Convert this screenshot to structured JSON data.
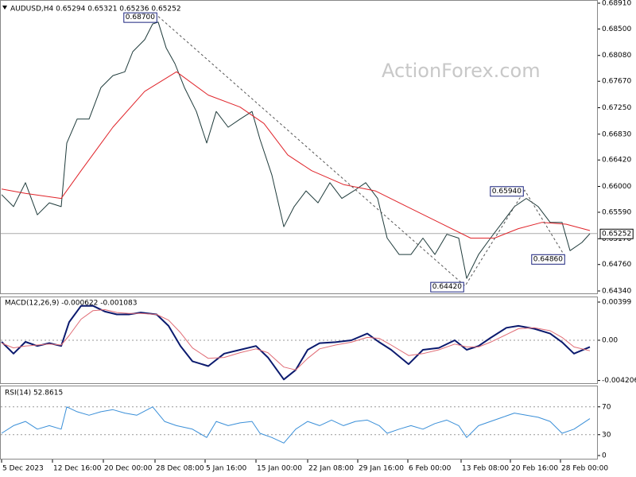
{
  "chart_data": [
    {
      "type": "line",
      "title": "AUDUSD,H4  0.65294 0.65321 0.65236 0.65252",
      "watermark": "ActionForex.com",
      "ylim": [
        0.6434,
        0.6891
      ],
      "yticks": [
        {
          "value": 0.6891,
          "label": "0.68910"
        },
        {
          "value": 0.685,
          "label": "0.68500"
        },
        {
          "value": 0.6808,
          "label": "0.68080"
        },
        {
          "value": 0.6767,
          "label": "0.67670"
        },
        {
          "value": 0.6725,
          "label": "0.67250"
        },
        {
          "value": 0.6683,
          "label": "0.66830"
        },
        {
          "value": 0.6642,
          "label": "0.66420"
        },
        {
          "value": 0.66,
          "label": "0.66000"
        },
        {
          "value": 0.6559,
          "label": "0.65590"
        },
        {
          "value": 0.6517,
          "label": "0.65170"
        },
        {
          "value": 0.6476,
          "label": "0.64760"
        },
        {
          "value": 0.6434,
          "label": "0.64340"
        }
      ],
      "last": {
        "value": 0.65252,
        "label": "0.65252"
      },
      "series": [
        {
          "color": "#1f3b3b",
          "x": [
            0,
            3,
            6,
            9,
            12,
            15,
            16.4,
            19,
            22,
            25,
            28,
            31,
            33,
            36,
            38,
            39.4,
            41.4,
            43.6,
            46,
            49,
            51.6,
            54,
            57,
            60,
            63,
            65,
            68,
            71,
            73.6,
            76.6,
            79.6,
            82.6,
            85.6,
            88.6,
            91.6,
            94.6,
            97,
            100,
            103,
            106,
            109,
            112,
            115,
            117,
            120,
            123,
            126,
            129,
            132,
            135,
            138,
            141,
            143,
            146,
            148
          ],
          "values": [
            0.6587,
            0.6568,
            0.6606,
            0.6555,
            0.6574,
            0.6568,
            0.6669,
            0.6707,
            0.6707,
            0.6757,
            0.6776,
            0.6782,
            0.6814,
            0.6833,
            0.6858,
            0.6861,
            0.682,
            0.6795,
            0.6757,
            0.6719,
            0.6669,
            0.6719,
            0.6694,
            0.6707,
            0.6719,
            0.6675,
            0.6618,
            0.6536,
            0.6568,
            0.6593,
            0.6574,
            0.6606,
            0.6581,
            0.6593,
            0.6606,
            0.6581,
            0.6518,
            0.6492,
            0.6492,
            0.6518,
            0.6492,
            0.6524,
            0.6518,
            0.6454,
            0.6492,
            0.6518,
            0.6543,
            0.6568,
            0.6581,
            0.6568,
            0.6543,
            0.6543,
            0.6498,
            0.6511,
            0.6525
          ]
        },
        {
          "color": "#e0242a",
          "x": [
            0,
            6,
            15,
            20,
            28,
            36,
            44,
            52,
            60,
            66,
            72,
            78,
            86,
            94,
            102,
            110,
            118,
            124,
            130,
            136,
            142,
            148
          ],
          "values": [
            0.6596,
            0.6589,
            0.6581,
            0.6625,
            0.6694,
            0.6751,
            0.6782,
            0.6745,
            0.6726,
            0.67,
            0.665,
            0.6625,
            0.6603,
            0.6593,
            0.6568,
            0.6543,
            0.6518,
            0.6518,
            0.6533,
            0.6543,
            0.654,
            0.653
          ]
        }
      ],
      "pivots": {
        "x": [
          39.4,
          116.6,
          131.6,
          142.0
        ],
        "values": [
          0.687,
          0.6442,
          0.6594,
          0.6486
        ],
        "value_labels": [
          "0.68700",
          "0.64420",
          "0.65940",
          "0.64860"
        ]
      }
    },
    {
      "type": "line",
      "title": "MACD(12,26,9) -0.000622 -0.001083",
      "ylim": [
        -0.00449,
        0.00457
      ],
      "yticks": [
        {
          "value": 0.00399,
          "label": "0.00399"
        },
        {
          "value": 0,
          "label": "0.00"
        },
        {
          "value": -0.004206,
          "label": "-0.004206"
        }
      ],
      "levels": [
        0
      ],
      "series": [
        {
          "color": "#0b1a6e",
          "x": [
            0,
            3,
            6,
            9,
            12,
            15,
            17,
            20,
            23,
            26,
            29,
            32,
            35,
            39,
            42,
            45,
            48,
            52,
            56,
            60,
            64,
            67,
            71,
            74,
            77,
            80,
            84,
            88,
            92,
            95,
            98,
            102.4,
            106,
            110,
            114,
            117,
            120,
            123,
            127,
            130,
            134,
            138,
            141,
            144,
            148
          ],
          "values": [
            -0.00017,
            -0.0014,
            -0.00017,
            -0.0006,
            -0.0003,
            -0.0006,
            0.0019,
            0.0036,
            0.0036,
            0.003,
            0.0027,
            0.0027,
            0.0029,
            0.0027,
            0.0015,
            -0.0006,
            -0.0022,
            -0.0027,
            -0.0014,
            -0.001,
            -0.0006,
            -0.0018,
            -0.0041,
            -0.0031,
            -0.001,
            -0.0003,
            -0.0002,
            0,
            0.0007,
            -0.0002,
            -0.001,
            -0.0025,
            -0.001,
            -0.0008,
            0,
            -0.001,
            -0.0006,
            0.00025,
            0.0013,
            0.0015,
            0.0012,
            0.0007,
            -0.0002,
            -0.0014,
            -0.0007
          ]
        },
        {
          "color": "#e06b74",
          "x": [
            0,
            3,
            6,
            9,
            12,
            15,
            17,
            20,
            23,
            26,
            29,
            32,
            35,
            39,
            42,
            45,
            48,
            52,
            56,
            60,
            64,
            67,
            71,
            74,
            77,
            80,
            84,
            88,
            92,
            95,
            98,
            102.4,
            106,
            110,
            114,
            117,
            120,
            123,
            127,
            130,
            134,
            138,
            141,
            144,
            148
          ],
          "values": [
            -0.0003,
            -0.0008,
            -0.0006,
            -0.0005,
            -0.0004,
            -0.0005,
            0.0005,
            0.0022,
            0.0031,
            0.0032,
            0.0029,
            0.0028,
            0.0028,
            0.0027,
            0.0021,
            0.0008,
            -0.0008,
            -0.0019,
            -0.0018,
            -0.0013,
            -0.0009,
            -0.0013,
            -0.0028,
            -0.0031,
            -0.0019,
            -0.0009,
            -0.0005,
            -0.0002,
            0.0003,
            0.0002,
            -0.0005,
            -0.0016,
            -0.0014,
            -0.001,
            -0.0004,
            -0.0007,
            -0.0007,
            -0.0002,
            0.0006,
            0.0012,
            0.0013,
            0.001,
            0.0003,
            -0.0007,
            -0.0011
          ]
        }
      ]
    },
    {
      "type": "line",
      "title": "RSI(14) 52.8615",
      "ylim": [
        0,
        100
      ],
      "yticks": [
        70,
        30,
        0
      ],
      "levels": [
        30,
        70
      ],
      "series": [
        {
          "color": "#3a8fd8",
          "x": [
            0,
            3,
            6,
            9,
            12,
            15,
            16.4,
            19,
            22,
            25,
            28,
            31,
            34,
            38,
            41,
            44,
            48,
            51.6,
            54,
            57,
            60,
            63,
            65,
            68,
            71,
            74,
            77,
            80,
            83,
            86,
            89,
            92,
            95,
            97,
            100,
            103,
            106,
            109,
            112,
            115,
            117,
            120,
            123,
            126,
            129,
            132,
            135,
            138,
            141,
            144,
            148
          ],
          "values": [
            32,
            43,
            49,
            38,
            43,
            38,
            70,
            63,
            58,
            63,
            66,
            61,
            58,
            70,
            49,
            43,
            38,
            26,
            49,
            43,
            47,
            49,
            32,
            26,
            18,
            38,
            49,
            43,
            51,
            43,
            49,
            51,
            43,
            32,
            38,
            43,
            38,
            46,
            51,
            43,
            26,
            43,
            49,
            55,
            61,
            58,
            55,
            49,
            32,
            38,
            53
          ]
        }
      ],
      "xticks": [
        {
          "value": 0,
          "label": "5 Dec 2023"
        },
        {
          "value": 12.8,
          "label": "12 Dec 16:00"
        },
        {
          "value": 25.6,
          "label": "20 Dec 00:00"
        },
        {
          "value": 38.6,
          "label": "28 Dec 08:00"
        },
        {
          "value": 51.2,
          "label": "5 Jan 16:00"
        },
        {
          "value": 64,
          "label": "15 Jan 00:00"
        },
        {
          "value": 77,
          "label": "22 Jan 08:00"
        },
        {
          "value": 89.6,
          "label": "29 Jan 16:00"
        },
        {
          "value": 102.2,
          "label": "6 Feb 00:00"
        },
        {
          "value": 115.6,
          "label": "13 Feb 08:00"
        },
        {
          "value": 128,
          "label": "20 Feb 16:00"
        },
        {
          "value": 140.6,
          "label": "28 Feb 00:00"
        }
      ]
    }
  ]
}
